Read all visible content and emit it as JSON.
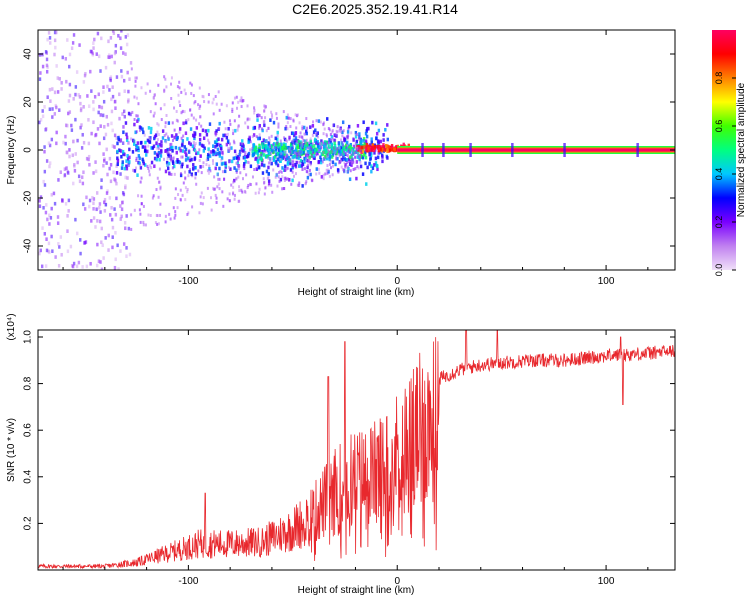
{
  "title": "C2E6.2025.352.19.41.R14",
  "colors": {
    "snr_line": "#e8282d",
    "axis": "#000000",
    "tick": "#888888"
  },
  "colorbar_stops": [
    "#f0e0f8",
    "#c080f0",
    "#7a00ff",
    "#0000ff",
    "#00c8ff",
    "#00ff80",
    "#40ff00",
    "#ffff00",
    "#ff8000",
    "#ff0000",
    "#ff0060"
  ],
  "chart_data": [
    {
      "type": "heatmap",
      "title": "C2E6.2025.352.19.41.R14",
      "xlabel": "Height of straight line (km)",
      "ylabel": "Frequency (Hz)",
      "xlim": [
        -172,
        133
      ],
      "ylim": [
        -50,
        50
      ],
      "xticks": [
        -100,
        0,
        100
      ],
      "xtick_labels": [
        "-100",
        "0",
        "100"
      ],
      "yticks": [
        -40,
        -20,
        0,
        20,
        40
      ],
      "ytick_labels": [
        "-40",
        "-20",
        "0",
        "20",
        "40"
      ],
      "colorbar": {
        "label": "Normalized spectral amplitude",
        "range": [
          0.0,
          1.0
        ],
        "ticks": [
          0.0,
          0.2,
          0.4,
          0.6,
          0.8
        ],
        "tick_labels": [
          "0.0",
          "0.2",
          "0.4",
          "0.6",
          "0.8"
        ]
      },
      "dominant_band": {
        "x_start": 0,
        "x_end": 133,
        "freq_hz": 0,
        "amplitude": 1.0
      },
      "scatter_regions": [
        {
          "x_range": [
            -172,
            -128
          ],
          "freq_range": [
            -50,
            50
          ],
          "amplitude": 0.15
        },
        {
          "x_range": [
            -135,
            -5
          ],
          "freq_range": [
            -12,
            12
          ],
          "amplitude": 0.3
        },
        {
          "x_range": [
            -70,
            -15
          ],
          "freq_range": [
            -4,
            4
          ],
          "amplitude": 0.45
        },
        {
          "x_range": [
            -20,
            5
          ],
          "freq_range": [
            -1,
            2
          ],
          "amplitude": 0.9
        }
      ],
      "spikes": [
        12,
        22,
        35,
        55,
        80,
        115
      ]
    },
    {
      "type": "line",
      "xlabel": "Height of straight line (km)",
      "ylabel": "SNR (10 * v/v)",
      "y_multiplier": "(x10⁴)",
      "xlim": [
        -172,
        133
      ],
      "ylim": [
        0,
        1.03
      ],
      "xticks": [
        -100,
        0,
        100
      ],
      "xtick_labels": [
        "-100",
        "0",
        "100"
      ],
      "yticks": [
        0.2,
        0.4,
        0.6,
        0.8,
        1.0
      ],
      "ytick_labels": [
        "0.2",
        "0.4",
        "0.6",
        "0.8",
        "1.0"
      ],
      "envelope_x": [
        -172,
        -140,
        -125,
        -110,
        -95,
        -80,
        -65,
        -50,
        -40,
        -30,
        -22,
        -15,
        -8,
        0,
        10,
        20,
        30,
        40,
        50,
        65,
        80,
        100,
        120,
        133
      ],
      "envelope_y": [
        0.02,
        0.02,
        0.04,
        0.09,
        0.14,
        0.14,
        0.15,
        0.22,
        0.3,
        0.42,
        0.48,
        0.5,
        0.53,
        0.62,
        0.74,
        0.82,
        0.86,
        0.88,
        0.89,
        0.9,
        0.9,
        0.92,
        0.93,
        0.94
      ],
      "peaks": [
        {
          "x": -92,
          "y": 0.33
        },
        {
          "x": -33,
          "y": 0.83
        },
        {
          "x": -25,
          "y": 0.98
        },
        {
          "x": 33,
          "y": 1.03
        },
        {
          "x": 48,
          "y": 1.03
        },
        {
          "x": 108,
          "y": 0.71
        },
        {
          "x": 107,
          "y": 1.0
        }
      ]
    }
  ]
}
